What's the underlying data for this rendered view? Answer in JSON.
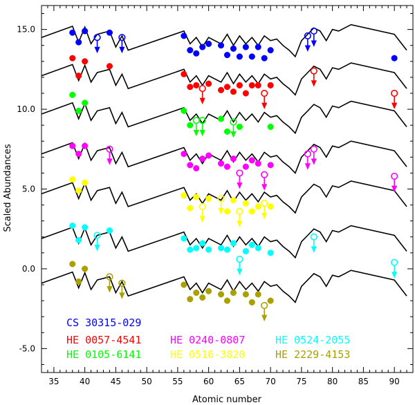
{
  "chart_data": {
    "type": "line",
    "xlabel": "Atomic number",
    "ylabel": "Scaled Abundances",
    "xlim": [
      33,
      93
    ],
    "ylim": [
      -6.5,
      16.5
    ],
    "x_ticks": [
      35,
      40,
      45,
      50,
      55,
      60,
      65,
      70,
      75,
      80,
      85,
      90
    ],
    "y_ticks": [
      15.0,
      10.0,
      5.0,
      0.0,
      -5.0
    ],
    "y_tick_labels": [
      "15.0",
      "10.0",
      "5.0",
      "0.0",
      "-5.0"
    ],
    "model": {
      "x": [
        33,
        38,
        39,
        40,
        41,
        42,
        44,
        45,
        46,
        47,
        56,
        57,
        58,
        59,
        60,
        62,
        63,
        64,
        65,
        66,
        67,
        68,
        69,
        70,
        71,
        72,
        73,
        74,
        75,
        76,
        77,
        78,
        79,
        80,
        81,
        82,
        83,
        90,
        92
      ],
      "shape": [
        0.0,
        0.7,
        -0.3,
        0.65,
        -0.4,
        0.2,
        0.4,
        -0.6,
        0.1,
        -0.8,
        0.4,
        -0.4,
        0.0,
        -0.6,
        0.0,
        -0.4,
        0.2,
        -0.5,
        0.1,
        -0.4,
        0.0,
        -0.5,
        0.1,
        -0.2,
        -0.1,
        -0.5,
        -0.8,
        -1.2,
        -0.2,
        0.2,
        0.6,
        0.4,
        -0.2,
        0.5,
        0.4,
        0.6,
        0.8,
        0.2,
        -0.8
      ]
    },
    "series": [
      {
        "name": "CS 30315-029",
        "color": "#0000ff",
        "offset": 14.5,
        "detections": [
          [
            38,
            14.8
          ],
          [
            39,
            14.2
          ],
          [
            40,
            14.9
          ],
          [
            44,
            14.8
          ],
          [
            56,
            14.6
          ],
          [
            57,
            13.7
          ],
          [
            58,
            13.5
          ],
          [
            59,
            13.9
          ],
          [
            60,
            14.1
          ],
          [
            62,
            14.0
          ],
          [
            63,
            13.4
          ],
          [
            64,
            13.8
          ],
          [
            65,
            13.3
          ],
          [
            66,
            13.9
          ],
          [
            67,
            13.3
          ],
          [
            68,
            13.9
          ],
          [
            69,
            13.2
          ],
          [
            70,
            13.7
          ],
          [
            90,
            13.2
          ]
        ],
        "limits": [
          [
            42,
            14.5
          ],
          [
            46,
            14.5
          ],
          [
            76,
            14.6
          ],
          [
            77,
            14.9
          ]
        ]
      },
      {
        "name": "HE 0057-4541",
        "color": "#ff0000",
        "offset": 12.1,
        "detections": [
          [
            38,
            13.2
          ],
          [
            39,
            12.1
          ],
          [
            40,
            13.0
          ],
          [
            44,
            12.7
          ],
          [
            56,
            12.2
          ],
          [
            57,
            11.4
          ],
          [
            58,
            11.5
          ],
          [
            60,
            11.6
          ],
          [
            62,
            11.2
          ],
          [
            63,
            11.4
          ],
          [
            64,
            11.1
          ],
          [
            65,
            11.5
          ],
          [
            66,
            11.0
          ],
          [
            67,
            11.5
          ],
          [
            68,
            11.5
          ],
          [
            70,
            11.5
          ]
        ],
        "limits": [
          [
            59,
            11.3
          ],
          [
            69,
            11.0
          ],
          [
            77,
            12.4
          ],
          [
            90,
            11.0
          ]
        ]
      },
      {
        "name": "HE 0105-6141",
        "color": "#00ff00",
        "offset": 9.7,
        "detections": [
          [
            38,
            10.9
          ],
          [
            39,
            9.9
          ],
          [
            40,
            10.4
          ],
          [
            56,
            9.9
          ],
          [
            57,
            9.0
          ],
          [
            62,
            9.4
          ],
          [
            63,
            8.6
          ],
          [
            65,
            8.9
          ],
          [
            70,
            8.9
          ]
        ],
        "limits": [
          [
            58,
            9.3
          ],
          [
            59,
            9.3
          ],
          [
            64,
            9.2
          ]
        ]
      },
      {
        "name": "HE 0240-0807",
        "color": "#ff00ff",
        "offset": 7.2,
        "detections": [
          [
            38,
            7.7
          ],
          [
            39,
            7.2
          ],
          [
            40,
            7.7
          ],
          [
            56,
            7.2
          ],
          [
            57,
            6.5
          ],
          [
            58,
            6.3
          ],
          [
            59,
            6.9
          ],
          [
            60,
            7.1
          ],
          [
            62,
            6.6
          ],
          [
            63,
            6.4
          ],
          [
            64,
            6.9
          ],
          [
            66,
            6.4
          ],
          [
            67,
            6.8
          ],
          [
            68,
            6.6
          ],
          [
            70,
            6.5
          ]
        ],
        "limits": [
          [
            44,
            7.5
          ],
          [
            65,
            6.0
          ],
          [
            69,
            5.9
          ],
          [
            76,
            7.2
          ],
          [
            77,
            7.5
          ],
          [
            90,
            5.8
          ]
        ]
      },
      {
        "name": "HE 0516-3820",
        "color": "#ffff00",
        "offset": 4.7,
        "detections": [
          [
            38,
            5.6
          ],
          [
            39,
            4.9
          ],
          [
            40,
            5.4
          ],
          [
            56,
            4.6
          ],
          [
            57,
            3.8
          ],
          [
            58,
            4.5
          ],
          [
            60,
            4.4
          ],
          [
            63,
            3.6
          ],
          [
            64,
            4.3
          ],
          [
            66,
            4.1
          ],
          [
            67,
            3.6
          ],
          [
            68,
            3.9
          ],
          [
            70,
            3.9
          ]
        ],
        "limits": [
          [
            59,
            3.9
          ],
          [
            62,
            4.4
          ],
          [
            65,
            3.6
          ],
          [
            69,
            4.1
          ]
        ]
      },
      {
        "name": "HE 0524-2055",
        "color": "#00ffff",
        "offset": 1.9,
        "detections": [
          [
            38,
            2.7
          ],
          [
            39,
            1.8
          ],
          [
            40,
            2.6
          ],
          [
            44,
            2.4
          ],
          [
            56,
            1.9
          ],
          [
            57,
            1.2
          ],
          [
            58,
            1.3
          ],
          [
            59,
            1.6
          ],
          [
            60,
            1.2
          ],
          [
            62,
            1.3
          ],
          [
            63,
            1.2
          ],
          [
            64,
            1.6
          ],
          [
            66,
            1.1
          ],
          [
            67,
            1.5
          ],
          [
            68,
            1.3
          ],
          [
            70,
            1.0
          ]
        ],
        "limits": [
          [
            42,
            2.1
          ],
          [
            65,
            0.6
          ],
          [
            77,
            2.0
          ],
          [
            90,
            0.4
          ]
        ]
      },
      {
        "name": "HE 2229-4153",
        "color": "#aaa000",
        "offset": -0.9,
        "detections": [
          [
            38,
            0.3
          ],
          [
            39,
            -0.8
          ],
          [
            40,
            0.0
          ],
          [
            56,
            -1.0
          ],
          [
            57,
            -1.9
          ],
          [
            58,
            -1.5
          ],
          [
            59,
            -1.8
          ],
          [
            60,
            -1.4
          ],
          [
            62,
            -1.6
          ],
          [
            63,
            -2.0
          ],
          [
            64,
            -1.5
          ],
          [
            66,
            -1.6
          ],
          [
            67,
            -2.1
          ],
          [
            68,
            -1.6
          ],
          [
            70,
            -2.0
          ]
        ],
        "limits": [
          [
            44,
            -0.5
          ],
          [
            46,
            -0.9
          ],
          [
            69,
            -2.3
          ]
        ]
      }
    ],
    "legend": [
      {
        "label": "CS 30315-029",
        "color": "#0000ff",
        "col": 0,
        "row": 0
      },
      {
        "label": "HE 0057-4541",
        "color": "#ff0000",
        "col": 0,
        "row": 1
      },
      {
        "label": "HE 0105-6141",
        "color": "#00ff00",
        "col": 0,
        "row": 2
      },
      {
        "label": "HE 0240-0807",
        "color": "#ff00ff",
        "col": 1,
        "row": 1
      },
      {
        "label": "HE 0516-3820",
        "color": "#ffff00",
        "col": 1,
        "row": 2
      },
      {
        "label": "HE 0524-2055",
        "color": "#00ffff",
        "col": 2,
        "row": 1
      },
      {
        "label": "HE 2229-4153",
        "color": "#aaa000",
        "col": 2,
        "row": 2
      }
    ],
    "legend_placement": "bottom-left",
    "grid": false
  }
}
